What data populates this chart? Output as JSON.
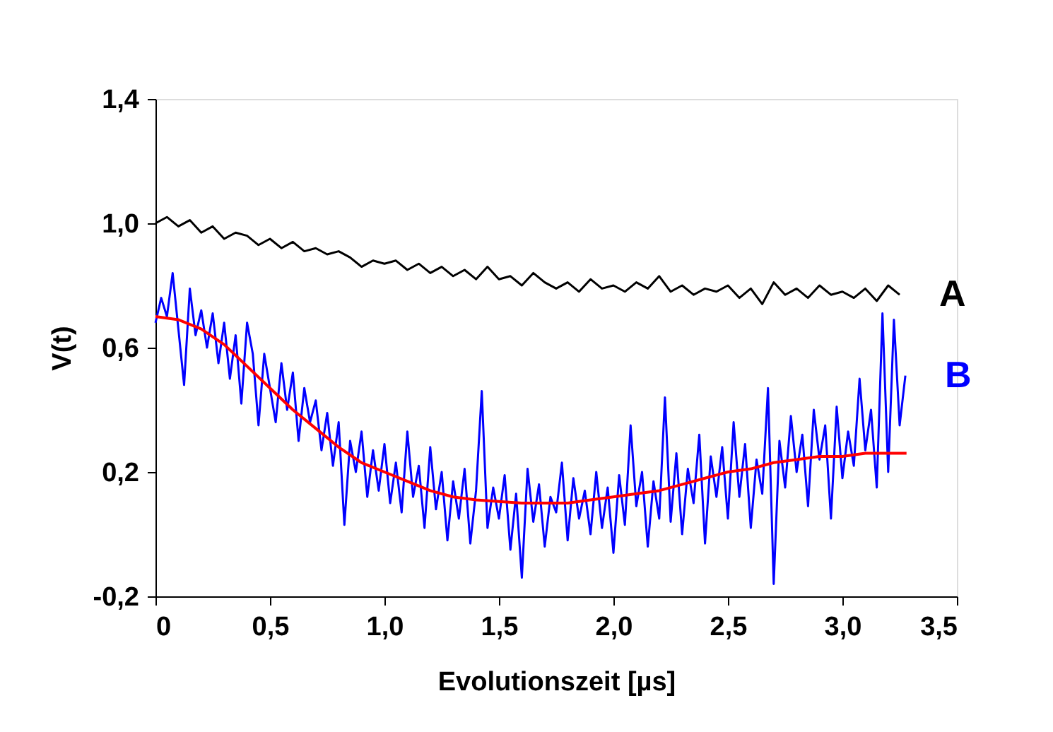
{
  "chart_data": {
    "type": "line",
    "xlabel": "Evolutionszeit [µs]",
    "ylabel": "V(t)",
    "xlim": [
      0,
      3.5
    ],
    "ylim": [
      -0.2,
      1.4
    ],
    "xticks": [
      {
        "value": 0,
        "label": "0"
      },
      {
        "value": 0.5,
        "label": "0,5"
      },
      {
        "value": 1.0,
        "label": "1,0"
      },
      {
        "value": 1.5,
        "label": "1,5"
      },
      {
        "value": 2.0,
        "label": "2,0"
      },
      {
        "value": 2.5,
        "label": "2,5"
      },
      {
        "value": 3.0,
        "label": "3,0"
      },
      {
        "value": 3.5,
        "label": "3,5"
      }
    ],
    "yticks": [
      {
        "value": -0.2,
        "label": "-0,2"
      },
      {
        "value": 0.2,
        "label": "0,2"
      },
      {
        "value": 0.6,
        "label": "0,6"
      },
      {
        "value": 1.0,
        "label": "1,0"
      },
      {
        "value": 1.4,
        "label": "1,4"
      }
    ],
    "grid": false,
    "legend": false,
    "marker": "none",
    "line_style": "solid",
    "series": [
      {
        "name": "A",
        "color": "#000000",
        "x": [
          0,
          0.05,
          0.1,
          0.15,
          0.2,
          0.25,
          0.3,
          0.35,
          0.4,
          0.45,
          0.5,
          0.55,
          0.6,
          0.65,
          0.7,
          0.75,
          0.8,
          0.85,
          0.9,
          0.95,
          1.0,
          1.05,
          1.1,
          1.15,
          1.2,
          1.25,
          1.3,
          1.35,
          1.4,
          1.45,
          1.5,
          1.55,
          1.6,
          1.65,
          1.7,
          1.75,
          1.8,
          1.85,
          1.9,
          1.95,
          2.0,
          2.05,
          2.1,
          2.15,
          2.2,
          2.25,
          2.3,
          2.35,
          2.4,
          2.45,
          2.5,
          2.55,
          2.6,
          2.65,
          2.7,
          2.75,
          2.8,
          2.85,
          2.9,
          2.95,
          3.0,
          3.05,
          3.1,
          3.15,
          3.2,
          3.25
        ],
        "values": [
          1.0,
          1.02,
          0.99,
          1.01,
          0.97,
          0.99,
          0.95,
          0.97,
          0.96,
          0.93,
          0.95,
          0.92,
          0.94,
          0.91,
          0.92,
          0.9,
          0.91,
          0.89,
          0.86,
          0.88,
          0.87,
          0.88,
          0.85,
          0.87,
          0.84,
          0.86,
          0.83,
          0.85,
          0.82,
          0.86,
          0.82,
          0.83,
          0.8,
          0.84,
          0.81,
          0.79,
          0.81,
          0.78,
          0.82,
          0.79,
          0.8,
          0.78,
          0.81,
          0.79,
          0.83,
          0.78,
          0.8,
          0.77,
          0.79,
          0.78,
          0.8,
          0.76,
          0.79,
          0.74,
          0.81,
          0.77,
          0.79,
          0.76,
          0.8,
          0.77,
          0.78,
          0.76,
          0.79,
          0.75,
          0.8,
          0.77
        ]
      },
      {
        "name": "B",
        "color": "#0000ff",
        "x": [
          0,
          0.025,
          0.05,
          0.075,
          0.1,
          0.125,
          0.15,
          0.175,
          0.2,
          0.225,
          0.25,
          0.275,
          0.3,
          0.325,
          0.35,
          0.375,
          0.4,
          0.425,
          0.45,
          0.475,
          0.5,
          0.525,
          0.55,
          0.575,
          0.6,
          0.625,
          0.65,
          0.675,
          0.7,
          0.725,
          0.75,
          0.775,
          0.8,
          0.825,
          0.85,
          0.875,
          0.9,
          0.925,
          0.95,
          0.975,
          1.0,
          1.025,
          1.05,
          1.075,
          1.1,
          1.125,
          1.15,
          1.175,
          1.2,
          1.225,
          1.25,
          1.275,
          1.3,
          1.325,
          1.35,
          1.375,
          1.4,
          1.425,
          1.45,
          1.475,
          1.5,
          1.525,
          1.55,
          1.575,
          1.6,
          1.625,
          1.65,
          1.675,
          1.7,
          1.725,
          1.75,
          1.775,
          1.8,
          1.825,
          1.85,
          1.875,
          1.9,
          1.925,
          1.95,
          1.975,
          2.0,
          2.025,
          2.05,
          2.075,
          2.1,
          2.125,
          2.15,
          2.175,
          2.2,
          2.225,
          2.25,
          2.275,
          2.3,
          2.325,
          2.35,
          2.375,
          2.4,
          2.425,
          2.45,
          2.475,
          2.5,
          2.525,
          2.55,
          2.575,
          2.6,
          2.625,
          2.65,
          2.675,
          2.7,
          2.725,
          2.75,
          2.775,
          2.8,
          2.825,
          2.85,
          2.875,
          2.9,
          2.925,
          2.95,
          2.975,
          3.0,
          3.025,
          3.05,
          3.075,
          3.1,
          3.125,
          3.15,
          3.175,
          3.2,
          3.225,
          3.25,
          3.275
        ],
        "values": [
          0.68,
          0.76,
          0.7,
          0.84,
          0.66,
          0.48,
          0.79,
          0.64,
          0.72,
          0.6,
          0.71,
          0.55,
          0.68,
          0.5,
          0.64,
          0.42,
          0.68,
          0.58,
          0.35,
          0.58,
          0.47,
          0.36,
          0.55,
          0.4,
          0.52,
          0.3,
          0.47,
          0.36,
          0.43,
          0.27,
          0.39,
          0.22,
          0.36,
          0.03,
          0.3,
          0.2,
          0.33,
          0.12,
          0.27,
          0.14,
          0.29,
          0.1,
          0.23,
          0.07,
          0.33,
          0.12,
          0.22,
          0.02,
          0.28,
          0.08,
          0.2,
          -0.02,
          0.17,
          0.05,
          0.21,
          -0.03,
          0.14,
          0.46,
          0.02,
          0.15,
          0.05,
          0.19,
          -0.05,
          0.13,
          -0.14,
          0.21,
          0.04,
          0.16,
          -0.04,
          0.12,
          0.07,
          0.23,
          -0.02,
          0.18,
          0.05,
          0.14,
          0.0,
          0.2,
          0.02,
          0.15,
          -0.06,
          0.19,
          0.03,
          0.35,
          0.09,
          0.2,
          -0.04,
          0.17,
          0.05,
          0.44,
          0.04,
          0.26,
          0.0,
          0.21,
          0.1,
          0.32,
          -0.03,
          0.25,
          0.12,
          0.28,
          0.05,
          0.36,
          0.12,
          0.29,
          0.02,
          0.24,
          0.13,
          0.47,
          -0.16,
          0.3,
          0.15,
          0.38,
          0.2,
          0.32,
          0.09,
          0.4,
          0.24,
          0.35,
          0.05,
          0.41,
          0.18,
          0.33,
          0.22,
          0.5,
          0.27,
          0.4,
          0.15,
          0.71,
          0.2,
          0.69,
          0.35,
          0.51
        ]
      },
      {
        "type": "line",
        "color": "#ff0000",
        "x": [
          0,
          0.1,
          0.2,
          0.3,
          0.4,
          0.5,
          0.6,
          0.7,
          0.8,
          0.9,
          1.0,
          1.1,
          1.2,
          1.3,
          1.4,
          1.5,
          1.6,
          1.7,
          1.8,
          1.9,
          2.0,
          2.1,
          2.2,
          2.3,
          2.4,
          2.5,
          2.6,
          2.7,
          2.8,
          2.9,
          3.0,
          3.1,
          3.2,
          3.28
        ],
        "values": [
          0.7,
          0.69,
          0.66,
          0.61,
          0.54,
          0.47,
          0.4,
          0.34,
          0.28,
          0.23,
          0.2,
          0.17,
          0.14,
          0.12,
          0.11,
          0.105,
          0.1,
          0.1,
          0.1,
          0.11,
          0.12,
          0.13,
          0.14,
          0.16,
          0.18,
          0.2,
          0.21,
          0.23,
          0.24,
          0.25,
          0.25,
          0.26,
          0.26,
          0.26
        ]
      }
    ]
  }
}
